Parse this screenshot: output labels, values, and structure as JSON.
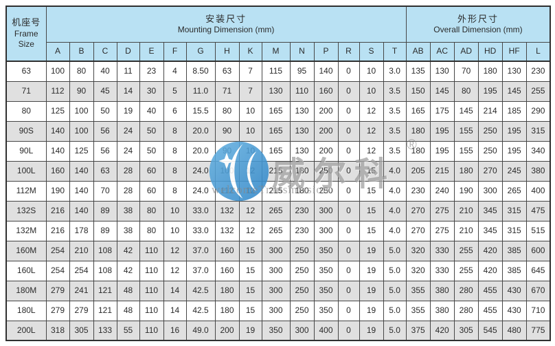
{
  "table": {
    "frame_header": {
      "zh": "机座号",
      "en_line1": "Frame",
      "en_line2": "Size"
    },
    "mounting_header": {
      "zh": "安装尺寸",
      "en": "Mounting Dimension (mm)"
    },
    "overall_header": {
      "zh": "外形尺寸",
      "en": "Overall Dimension (mm)"
    },
    "mounting_columns": [
      "A",
      "B",
      "C",
      "D",
      "E",
      "F",
      "G",
      "H",
      "K",
      "M",
      "N",
      "P",
      "R",
      "S",
      "T"
    ],
    "overall_columns": [
      "AB",
      "AC",
      "AD",
      "HD",
      "HF",
      "L"
    ],
    "rows": [
      {
        "frame": "63",
        "values": [
          "100",
          "80",
          "40",
          "11",
          "23",
          "4",
          "8.50",
          "63",
          "7",
          "115",
          "95",
          "140",
          "0",
          "10",
          "3.0",
          "135",
          "130",
          "70",
          "180",
          "130",
          "230"
        ]
      },
      {
        "frame": "71",
        "values": [
          "112",
          "90",
          "45",
          "14",
          "30",
          "5",
          "11.0",
          "71",
          "7",
          "130",
          "110",
          "160",
          "0",
          "10",
          "3.5",
          "150",
          "145",
          "80",
          "195",
          "145",
          "255"
        ]
      },
      {
        "frame": "80",
        "values": [
          "125",
          "100",
          "50",
          "19",
          "40",
          "6",
          "15.5",
          "80",
          "10",
          "165",
          "130",
          "200",
          "0",
          "12",
          "3.5",
          "165",
          "175",
          "145",
          "214",
          "185",
          "290"
        ]
      },
      {
        "frame": "90S",
        "values": [
          "140",
          "100",
          "56",
          "24",
          "50",
          "8",
          "20.0",
          "90",
          "10",
          "165",
          "130",
          "200",
          "0",
          "12",
          "3.5",
          "180",
          "195",
          "155",
          "250",
          "195",
          "315"
        ]
      },
      {
        "frame": "90L",
        "values": [
          "140",
          "125",
          "56",
          "24",
          "50",
          "8",
          "20.0",
          "90",
          "10",
          "165",
          "130",
          "200",
          "0",
          "12",
          "3.5",
          "180",
          "195",
          "155",
          "250",
          "195",
          "340"
        ]
      },
      {
        "frame": "100L",
        "values": [
          "160",
          "140",
          "63",
          "28",
          "60",
          "8",
          "24.0",
          "100",
          "12",
          "215",
          "180",
          "250",
          "0",
          "15",
          "4.0",
          "205",
          "215",
          "180",
          "270",
          "245",
          "380"
        ]
      },
      {
        "frame": "112M",
        "values": [
          "190",
          "140",
          "70",
          "28",
          "60",
          "8",
          "24.0",
          "112",
          "12",
          "215",
          "180",
          "250",
          "0",
          "15",
          "4.0",
          "230",
          "240",
          "190",
          "300",
          "265",
          "400"
        ]
      },
      {
        "frame": "132S",
        "values": [
          "216",
          "140",
          "89",
          "38",
          "80",
          "10",
          "33.0",
          "132",
          "12",
          "265",
          "230",
          "300",
          "0",
          "15",
          "4.0",
          "270",
          "275",
          "210",
          "345",
          "315",
          "475"
        ]
      },
      {
        "frame": "132M",
        "values": [
          "216",
          "178",
          "89",
          "38",
          "80",
          "10",
          "33.0",
          "132",
          "12",
          "265",
          "230",
          "300",
          "0",
          "15",
          "4.0",
          "270",
          "275",
          "210",
          "345",
          "315",
          "515"
        ]
      },
      {
        "frame": "160M",
        "values": [
          "254",
          "210",
          "108",
          "42",
          "110",
          "12",
          "37.0",
          "160",
          "15",
          "300",
          "250",
          "350",
          "0",
          "19",
          "5.0",
          "320",
          "330",
          "255",
          "420",
          "385",
          "600"
        ]
      },
      {
        "frame": "160L",
        "values": [
          "254",
          "254",
          "108",
          "42",
          "110",
          "12",
          "37.0",
          "160",
          "15",
          "300",
          "250",
          "350",
          "0",
          "19",
          "5.0",
          "320",
          "330",
          "255",
          "420",
          "385",
          "645"
        ]
      },
      {
        "frame": "180M",
        "values": [
          "279",
          "241",
          "121",
          "48",
          "110",
          "14",
          "42.5",
          "180",
          "15",
          "300",
          "250",
          "350",
          "0",
          "19",
          "5.0",
          "355",
          "380",
          "280",
          "455",
          "430",
          "670"
        ]
      },
      {
        "frame": "180L",
        "values": [
          "279",
          "279",
          "121",
          "48",
          "110",
          "14",
          "42.5",
          "180",
          "15",
          "300",
          "250",
          "350",
          "0",
          "19",
          "5.0",
          "355",
          "380",
          "280",
          "455",
          "430",
          "710"
        ]
      },
      {
        "frame": "200L",
        "values": [
          "318",
          "305",
          "133",
          "55",
          "110",
          "16",
          "49.0",
          "200",
          "19",
          "350",
          "300",
          "400",
          "0",
          "19",
          "5.0",
          "375",
          "420",
          "305",
          "545",
          "480",
          "775"
        ]
      }
    ]
  },
  "watermark": {
    "brand_zh": "威尔科",
    "registered": "®",
    "brand_en": "welcomeTransmission"
  },
  "colors": {
    "header_bg": "#b9e1f3",
    "stripe_bg": "#e0e0e0",
    "border": "#454545",
    "watermark_blue": "#3d95d4",
    "watermark_gray": "#7d7d7d"
  }
}
